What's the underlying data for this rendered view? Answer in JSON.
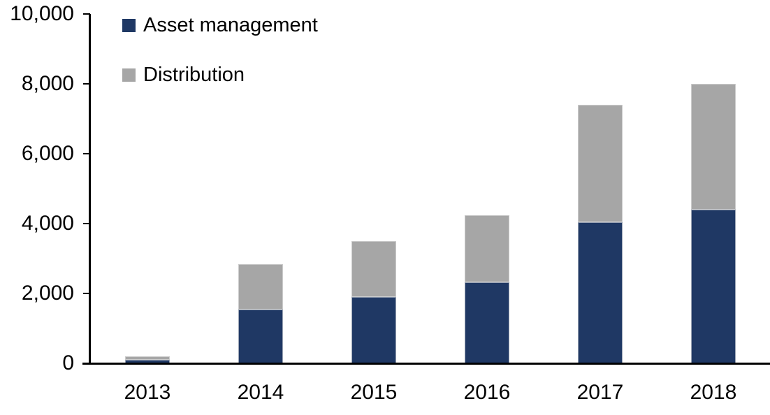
{
  "chart_data": {
    "type": "bar",
    "stacked": true,
    "title": "",
    "xlabel": "",
    "ylabel": "",
    "categories": [
      "2013",
      "2014",
      "2015",
      "2016",
      "2017",
      "2018"
    ],
    "series": [
      {
        "name": "Asset management",
        "color": "#1F3864",
        "values": [
          100,
          1550,
          1900,
          2320,
          4050,
          4400
        ]
      },
      {
        "name": "Distribution",
        "color": "#A6A6A6",
        "values": [
          100,
          1300,
          1600,
          1930,
          3350,
          3600
        ]
      }
    ],
    "totals": [
      200,
      2850,
      3500,
      4250,
      7400,
      8000
    ],
    "ylim": [
      0,
      10000
    ],
    "yticks": {
      "values": [
        0,
        2000,
        4000,
        6000,
        8000,
        10000
      ],
      "labels": [
        "0",
        "2,000",
        "4,000",
        "6,000",
        "8,000",
        "10,000"
      ]
    },
    "legend_position": "top-left-inside",
    "grid": false,
    "axis_color": "#000000",
    "background_color": "#FFFFFF"
  }
}
